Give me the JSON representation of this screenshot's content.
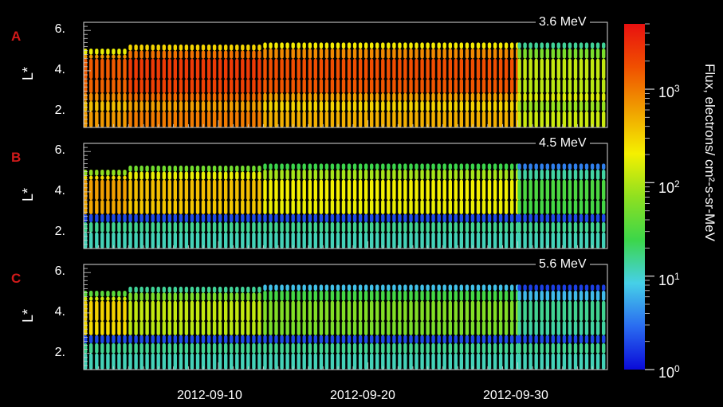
{
  "chart_data": [
    {
      "type": "heatmap",
      "panel_label": "A",
      "energy_label": "3.6 MeV",
      "ylabel": "L*",
      "yticks": [
        "6.",
        "4.",
        "2."
      ],
      "ylim": [
        1.2,
        6.4
      ],
      "xlim": [
        "2012-09-01",
        "2012-10-06"
      ],
      "xticks": [
        "2012-09-10",
        "2012-09-20",
        "2012-09-30"
      ],
      "colorscale": "log",
      "zlim": [
        1,
        5000
      ],
      "segments": [
        {
          "from": "2012-09-01",
          "to": "2012-09-04",
          "outer_max_L": 5.1,
          "core_flux": 1500,
          "slot_flux": 800
        },
        {
          "from": "2012-09-04",
          "to": "2012-09-13",
          "outer_max_L": 5.3,
          "core_flux": 2500,
          "slot_flux": 1200
        },
        {
          "from": "2012-09-13",
          "to": "2012-09-30",
          "outer_max_L": 5.4,
          "core_flux": 1800,
          "slot_flux": 600
        },
        {
          "from": "2012-09-30",
          "to": "2012-10-06",
          "outer_max_L": 5.4,
          "core_flux": 120,
          "slot_flux": 150
        }
      ]
    },
    {
      "type": "heatmap",
      "panel_label": "B",
      "energy_label": "4.5 MeV",
      "ylabel": "L*",
      "yticks": [
        "6.",
        "4.",
        "2."
      ],
      "ylim": [
        1.2,
        6.4
      ],
      "xlim": [
        "2012-09-01",
        "2012-10-06"
      ],
      "xticks": [
        "2012-09-10",
        "2012-09-20",
        "2012-09-30"
      ],
      "colorscale": "log",
      "zlim": [
        1,
        5000
      ],
      "segments": [
        {
          "from": "2012-09-01",
          "to": "2012-09-04",
          "outer_max_L": 5.1,
          "core_flux": 600,
          "slot_flux": 2
        },
        {
          "from": "2012-09-04",
          "to": "2012-09-13",
          "outer_max_L": 5.3,
          "core_flux": 400,
          "slot_flux": 2
        },
        {
          "from": "2012-09-13",
          "to": "2012-09-30",
          "outer_max_L": 5.4,
          "core_flux": 200,
          "slot_flux": 2
        },
        {
          "from": "2012-09-30",
          "to": "2012-10-06",
          "outer_max_L": 5.4,
          "core_flux": 30,
          "slot_flux": 2
        }
      ]
    },
    {
      "type": "heatmap",
      "panel_label": "C",
      "energy_label": "5.6 MeV",
      "ylabel": "L*",
      "yticks": [
        "6.",
        "4.",
        "2."
      ],
      "ylim": [
        1.2,
        6.4
      ],
      "xlim": [
        "2012-09-01",
        "2012-10-06"
      ],
      "xticks": [
        "2012-09-10",
        "2012-09-20",
        "2012-09-30"
      ],
      "colorscale": "log",
      "zlim": [
        1,
        5000
      ],
      "segments": [
        {
          "from": "2012-09-01",
          "to": "2012-09-04",
          "outer_max_L": 5.1,
          "core_flux": 300,
          "slot_flux": 2
        },
        {
          "from": "2012-09-04",
          "to": "2012-09-13",
          "outer_max_L": 5.3,
          "core_flux": 120,
          "slot_flux": 2
        },
        {
          "from": "2012-09-13",
          "to": "2012-09-30",
          "outer_max_L": 5.4,
          "core_flux": 60,
          "slot_flux": 2
        },
        {
          "from": "2012-09-30",
          "to": "2012-10-06",
          "outer_max_L": 5.4,
          "core_flux": 15,
          "slot_flux": 2
        }
      ]
    }
  ],
  "colorbar": {
    "title": "Flux,  electrons/ cm²-s-sr-MeV",
    "ticks": [
      {
        "base": "10",
        "exp": "3",
        "value": 1000
      },
      {
        "base": "10",
        "exp": "2",
        "value": 100
      },
      {
        "base": "10",
        "exp": "1",
        "value": 10
      },
      {
        "base": "10",
        "exp": "0",
        "value": 1
      }
    ],
    "colors": [
      "#0a0ad8",
      "#2a6cf0",
      "#46d0e8",
      "#3cd64a",
      "#8fe020",
      "#f5f000",
      "#f0a000",
      "#f05000",
      "#e81010"
    ]
  }
}
